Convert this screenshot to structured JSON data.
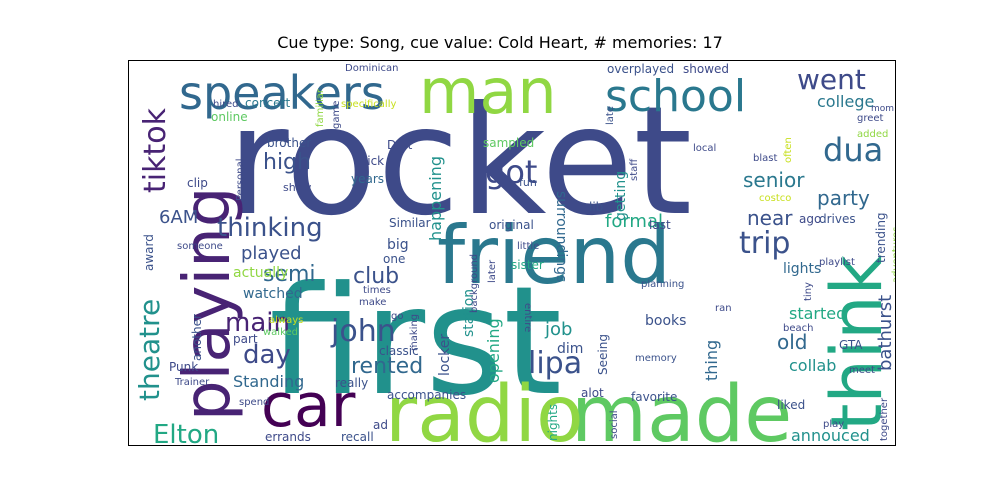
{
  "title": "Cue type: Song, cue value: Cold Heart, # memories: 17",
  "words": [
    "rocket",
    "first",
    "friend",
    "made",
    "radio",
    "man",
    "car",
    "think",
    "playing",
    "speakers",
    "school",
    "tiktok",
    "went",
    "dua",
    "trip",
    "thinking",
    "got",
    "lipa",
    "john",
    "main",
    "day",
    "theatre",
    "Elton",
    "high",
    "semi",
    "senior",
    "party",
    "college",
    "6AM",
    "played",
    "near",
    "formal",
    "club",
    "rented",
    "job",
    "old",
    "bathurst",
    "surroundings",
    "happening",
    "getting",
    "locker",
    "station",
    "opening",
    "lights",
    "started",
    "collab",
    "annouced",
    "thing",
    "books",
    "Standing",
    "big",
    "watched",
    "actually",
    "dim",
    "brother",
    "sick",
    "years",
    "sampled",
    "fun",
    "Daft",
    "show",
    "clip",
    "Personal",
    "concert",
    "online",
    "familiar",
    "game",
    "hired",
    "Dominican",
    "specifically",
    "overplayed",
    "showed",
    "late",
    "local",
    "lib",
    "original",
    "last",
    "sister",
    "little",
    "later",
    "background",
    "one",
    "Similar",
    "award",
    "someone",
    "another",
    "part",
    "Punk",
    "Trainer",
    "spend",
    "errands",
    "recall",
    "accompanies",
    "ad",
    "alot",
    "nights",
    "social",
    "favorite",
    "memory",
    "Seeing",
    "entire",
    "planning",
    "ran",
    "tiny",
    "GTA",
    "beach",
    "meet",
    "together",
    "liked",
    "play",
    "trending",
    "playlist",
    "adventures",
    "drives",
    "costco",
    "ago",
    "blast",
    "often",
    "staff",
    "greet",
    "added",
    "mom",
    "always",
    "walked",
    "times",
    "make",
    "classic",
    "go",
    "making",
    "really"
  ],
  "colors": {
    "dark_purple": "#482374",
    "navy": "#3e4a89",
    "slate_blue": "#3b528b",
    "blue": "#31688e",
    "teal_blue": "#2a788e",
    "teal": "#21918c",
    "green_teal": "#22a884",
    "green": "#35b779",
    "light_green": "#5ec962",
    "yellow_green": "#90d743",
    "lime": "#c8e020",
    "deep_purple": "#440154"
  }
}
